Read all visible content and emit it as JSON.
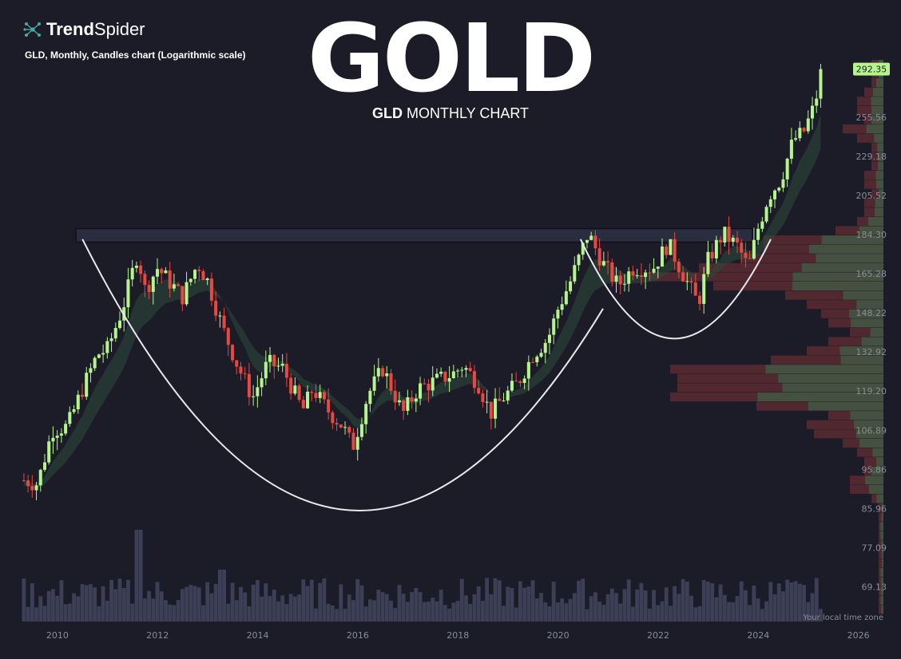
{
  "brand": {
    "name_bold": "Trend",
    "name_regular": "Spider",
    "logo_icon": "spider-network-icon"
  },
  "header": {
    "subtitle": "GLD, Monthly, Candles chart (Logarithmic scale)",
    "title": "GOLD",
    "chart_sub_bold": "GLD",
    "chart_sub_rest": " MONTHLY CHART"
  },
  "colors": {
    "background": "#1c1c29",
    "up_candle": "#b6f58c",
    "down_candle": "#e8483f",
    "volume": "#3d3f57",
    "profile_up": "#4b5a44",
    "profile_down": "#5a2a30",
    "ribbon": "#2c4a3a",
    "price_badge": "#b6f58c"
  },
  "timezone_note": "Your local time zone",
  "chart_data": {
    "type": "candlestick",
    "title": "GLD, Monthly, Candles chart (Logarithmic scale)",
    "y_scale": "log",
    "ylim": [
      64,
      300
    ],
    "x_range": [
      2009.3,
      2026.5
    ],
    "y_ticks": [
      "69.13",
      "77.09",
      "85.96",
      "95.86",
      "106.89",
      "119.20",
      "132.92",
      "148.22",
      "165.28",
      "184.30",
      "205.52",
      "229.18",
      "255.56"
    ],
    "last_price": "292.35",
    "x_ticks": [
      "2010",
      "2012",
      "2014",
      "2016",
      "2018",
      "2020",
      "2022",
      "2024",
      "2026"
    ],
    "series": [
      {
        "name": "GLD",
        "close_points": [
          [
            2009.33,
            93
          ],
          [
            2009.6,
            92
          ],
          [
            2009.9,
            107
          ],
          [
            2010.2,
            108
          ],
          [
            2010.5,
            120
          ],
          [
            2010.8,
            132
          ],
          [
            2011.0,
            134
          ],
          [
            2011.3,
            150
          ],
          [
            2011.6,
            175
          ],
          [
            2011.75,
            158
          ],
          [
            2012.0,
            168
          ],
          [
            2012.3,
            160
          ],
          [
            2012.5,
            155
          ],
          [
            2012.8,
            170
          ],
          [
            2013.0,
            162
          ],
          [
            2013.3,
            142
          ],
          [
            2013.6,
            128
          ],
          [
            2013.9,
            117
          ],
          [
            2014.2,
            129
          ],
          [
            2014.5,
            127
          ],
          [
            2014.9,
            113
          ],
          [
            2015.1,
            120
          ],
          [
            2015.4,
            113
          ],
          [
            2015.7,
            108
          ],
          [
            2015.9,
            102
          ],
          [
            2016.2,
            118
          ],
          [
            2016.5,
            127
          ],
          [
            2016.9,
            112
          ],
          [
            2017.2,
            120
          ],
          [
            2017.6,
            123
          ],
          [
            2017.9,
            125
          ],
          [
            2018.1,
            128
          ],
          [
            2018.4,
            122
          ],
          [
            2018.65,
            112
          ],
          [
            2018.9,
            117
          ],
          [
            2019.2,
            122
          ],
          [
            2019.5,
            132
          ],
          [
            2019.8,
            138
          ],
          [
            2020.0,
            150
          ],
          [
            2020.25,
            162
          ],
          [
            2020.6,
            185
          ],
          [
            2020.9,
            170
          ],
          [
            2021.2,
            160
          ],
          [
            2021.5,
            168
          ],
          [
            2021.9,
            168
          ],
          [
            2022.2,
            180
          ],
          [
            2022.5,
            165
          ],
          [
            2022.8,
            152
          ],
          [
            2023.0,
            172
          ],
          [
            2023.3,
            185
          ],
          [
            2023.6,
            178
          ],
          [
            2023.8,
            168
          ],
          [
            2024.0,
            188
          ],
          [
            2024.2,
            205
          ],
          [
            2024.45,
            215
          ],
          [
            2024.7,
            240
          ],
          [
            2024.9,
            245
          ],
          [
            2025.1,
            262
          ],
          [
            2025.3,
            292.35
          ]
        ]
      }
    ],
    "annotations": [
      "horizontal resistance zone at ~184",
      "cup arc from 2010.5 to 2020.5 (low ~90)",
      "handle arc from 2020.5 to 2024.1 (low ~138)"
    ]
  }
}
